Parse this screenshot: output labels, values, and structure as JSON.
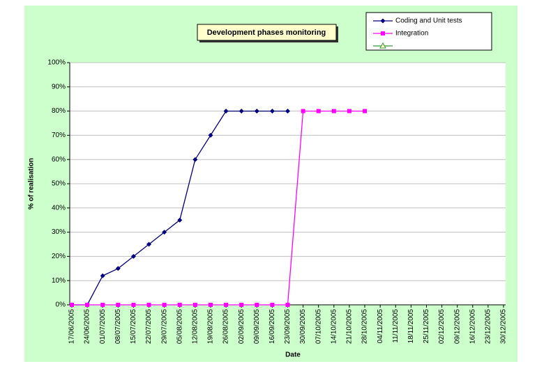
{
  "chart_data": {
    "type": "line",
    "title": "Development phases monitoring",
    "xlabel": "Date",
    "ylabel": "% of realisation",
    "categories": [
      "17/06/2005",
      "24/06/2005",
      "01/07/2005",
      "08/07/2005",
      "15/07/2005",
      "22/07/2005",
      "29/07/2005",
      "05/08/2005",
      "12/08/2005",
      "19/08/2005",
      "26/08/2005",
      "02/09/2005",
      "09/09/2005",
      "16/09/2005",
      "23/09/2005",
      "30/09/2005",
      "07/10/2005",
      "14/10/2005",
      "21/10/2005",
      "28/10/2005",
      "04/11/2005",
      "11/11/2005",
      "18/11/2005",
      "25/11/2005",
      "02/12/2005",
      "09/12/2005",
      "16/12/2005",
      "23/12/2005",
      "30/12/2005"
    ],
    "series": [
      {
        "name": "Coding and Unit tests",
        "color": "#000080",
        "marker": "diamond",
        "values": [
          0,
          0,
          12,
          15,
          20,
          25,
          30,
          35,
          60,
          70,
          80,
          80,
          80,
          80,
          80,
          null,
          null,
          null,
          null,
          null,
          null,
          null,
          null,
          null,
          null,
          null,
          null,
          null,
          null
        ]
      },
      {
        "name": "Integration",
        "color": "#ff00ff",
        "marker": "square",
        "values": [
          0,
          0,
          0,
          0,
          0,
          0,
          0,
          0,
          0,
          0,
          0,
          0,
          0,
          0,
          0,
          80,
          80,
          80,
          80,
          80,
          null,
          null,
          null,
          null,
          null,
          null,
          null,
          null,
          null
        ]
      },
      {
        "color": "#339933",
        "marker": "triangle"
      }
    ],
    "ylim": [
      0,
      100
    ],
    "yticks": [
      {
        "value": 0,
        "label": "0%"
      },
      {
        "value": 10,
        "label": "10%"
      },
      {
        "value": 20,
        "label": "20%"
      },
      {
        "value": 30,
        "label": "30%"
      },
      {
        "value": 40,
        "label": "40%"
      },
      {
        "value": 50,
        "label": "50%"
      },
      {
        "value": 60,
        "label": "60%"
      },
      {
        "value": 70,
        "label": "70%"
      },
      {
        "value": 80,
        "label": "80%"
      },
      {
        "value": 90,
        "label": "90%"
      },
      {
        "value": 100,
        "label": "100%"
      }
    ],
    "grid": true,
    "legend": "top-right"
  }
}
